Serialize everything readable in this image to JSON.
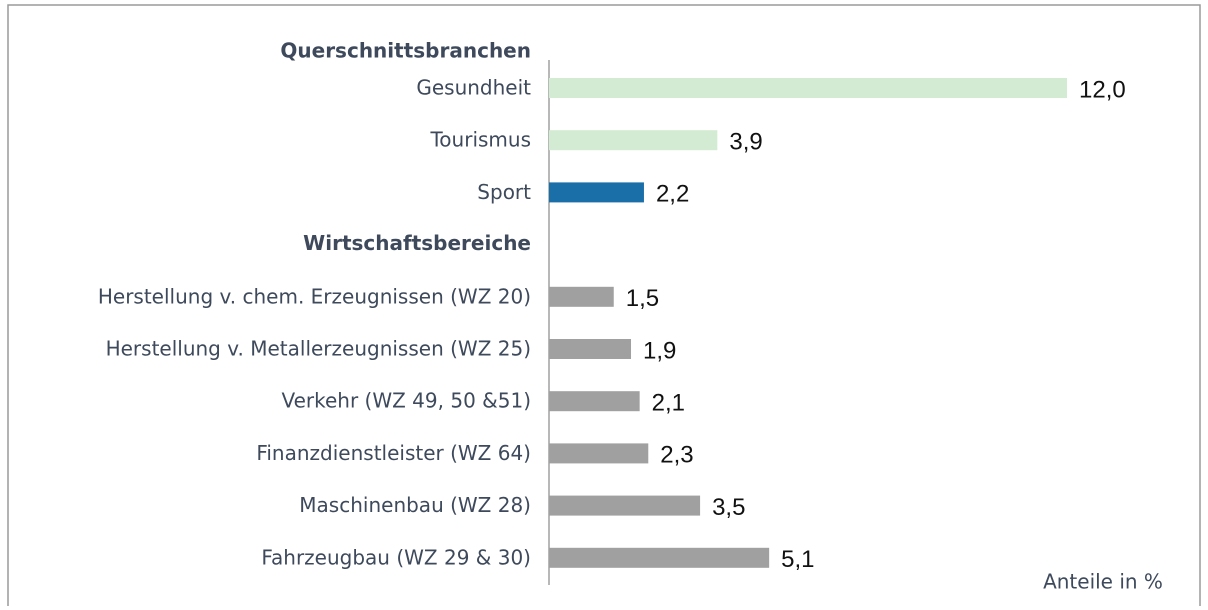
{
  "chart_data": {
    "type": "bar",
    "orientation": "horizontal",
    "groups": [
      {
        "name": "Querschnittsbranchen",
        "categories": [
          "Gesundheit",
          "Tourismus",
          "Sport"
        ],
        "values": [
          12.0,
          3.9,
          2.2
        ],
        "value_labels": [
          "12,0",
          "3,9",
          "2,2"
        ],
        "colors": [
          "#d3ebd2",
          "#d3ebd2",
          "#1b6fa9"
        ]
      },
      {
        "name": "Wirtschaftsbereiche",
        "categories": [
          "Herstellung v. chem. Erzeugnissen (WZ 20)",
          "Herstellung v. Metallerzeugnissen (WZ 25)",
          "Verkehr (WZ 49, 50 &51)",
          "Finanzdienstleister (WZ 64)",
          "Maschinenbau (WZ 28)",
          "Fahrzeugbau (WZ 29 & 30)"
        ],
        "values": [
          1.5,
          1.9,
          2.1,
          2.3,
          3.5,
          5.1
        ],
        "value_labels": [
          "1,5",
          "1,9",
          "2,1",
          "2,3",
          "3,5",
          "5,1"
        ],
        "colors": [
          "#a0a0a0",
          "#a0a0a0",
          "#a0a0a0",
          "#a0a0a0",
          "#a0a0a0",
          "#a0a0a0"
        ]
      }
    ],
    "xlim": [
      0,
      12
    ],
    "annotation": "Anteile in %"
  }
}
